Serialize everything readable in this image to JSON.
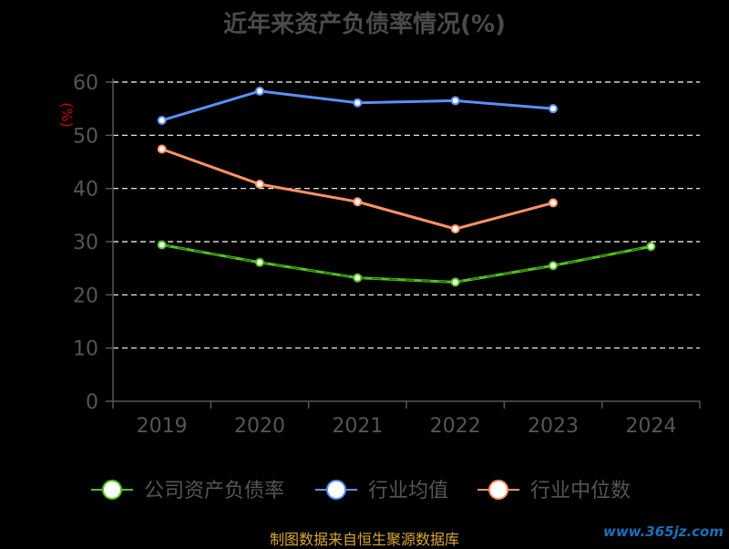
{
  "chart_data": {
    "type": "line",
    "title": "近年来资产负债率情况(%)",
    "ylabel": "(%)",
    "categories": [
      "2019",
      "2020",
      "2021",
      "2022",
      "2023",
      "2024"
    ],
    "ylim": [
      0,
      60
    ],
    "yticks": [
      0,
      10,
      20,
      30,
      40,
      50,
      60
    ],
    "grid": true,
    "legend_position": "bottom",
    "series": [
      {
        "name": "公司资产负债率",
        "color": "#52c41a",
        "values": [
          29.4,
          26.1,
          23.2,
          22.4,
          25.5,
          29.1
        ]
      },
      {
        "name": "行业均值",
        "color": "#5b8ff9",
        "values": [
          52.8,
          58.3,
          56.1,
          56.5,
          55.0,
          null
        ]
      },
      {
        "name": "行业中位数",
        "color": "#ff9266",
        "values": [
          47.4,
          40.8,
          37.5,
          32.4,
          37.3,
          null
        ]
      }
    ]
  },
  "footer": {
    "source": "制图数据来自恒生聚源数据库",
    "watermark": "www.365jz.com"
  },
  "colors": {
    "background": "#000000",
    "axis": "#555555",
    "grid": "#ffffff",
    "tick_label": "#555555",
    "ylabel": "#cc0000"
  }
}
